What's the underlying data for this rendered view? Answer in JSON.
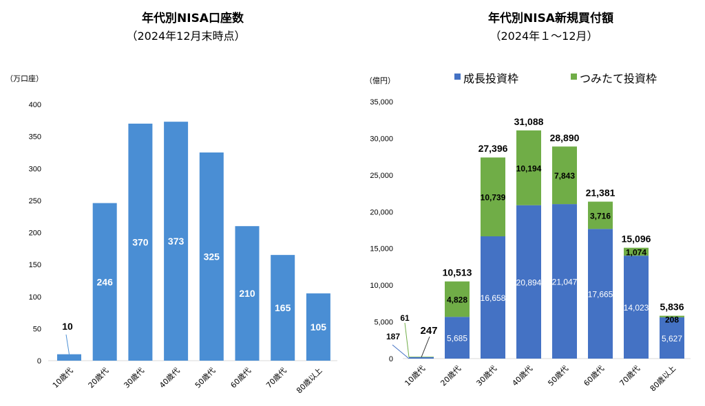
{
  "chart_data": [
    {
      "type": "bar",
      "title": "年代別NISA口座数",
      "subtitle": "（2024年12月末時点）",
      "ylabel": "（万口座）",
      "ylim": [
        0,
        400
      ],
      "yticks": [
        0,
        50,
        100,
        150,
        200,
        250,
        300,
        350,
        400
      ],
      "categories": [
        "10歳代",
        "20歳代",
        "30歳代",
        "40歳代",
        "50歳代",
        "60歳代",
        "70歳代",
        "80歳以上"
      ],
      "values": [
        10,
        246,
        370,
        373,
        325,
        210,
        165,
        105
      ],
      "color": "#4a8ed4"
    },
    {
      "type": "bar",
      "stacked": true,
      "title": "年代別NISA新規買付額",
      "subtitle": "（2024年１～12月）",
      "ylabel": "（億円）",
      "ylim": [
        0,
        35000
      ],
      "yticks": [
        "0",
        "5,000",
        "10,000",
        "15,000",
        "20,000",
        "25,000",
        "30,000",
        "35,000"
      ],
      "categories": [
        "10歳代",
        "20歳代",
        "30歳代",
        "40歳代",
        "50歳代",
        "60歳代",
        "70歳代",
        "80歳以上"
      ],
      "legend": "top",
      "series": [
        {
          "name": "成長投資枠",
          "color": "#4472c4",
          "values": [
            187,
            5685,
            16658,
            20894,
            21047,
            17665,
            14023,
            5627
          ],
          "labels": [
            "187",
            "5,685",
            "16,658",
            "20,894",
            "21,047",
            "17,665",
            "14,023",
            "5,627"
          ]
        },
        {
          "name": "つみたて投資枠",
          "color": "#70ad47",
          "values": [
            61,
            4828,
            10739,
            10194,
            7843,
            3716,
            1074,
            208
          ],
          "labels": [
            "61",
            "4,828",
            "10,739",
            "10,194",
            "7,843",
            "3,716",
            "1,074",
            "208"
          ]
        }
      ],
      "totals": [
        "247",
        "10,513",
        "27,396",
        "31,088",
        "28,890",
        "21,381",
        "15,096",
        "5,836"
      ]
    }
  ]
}
